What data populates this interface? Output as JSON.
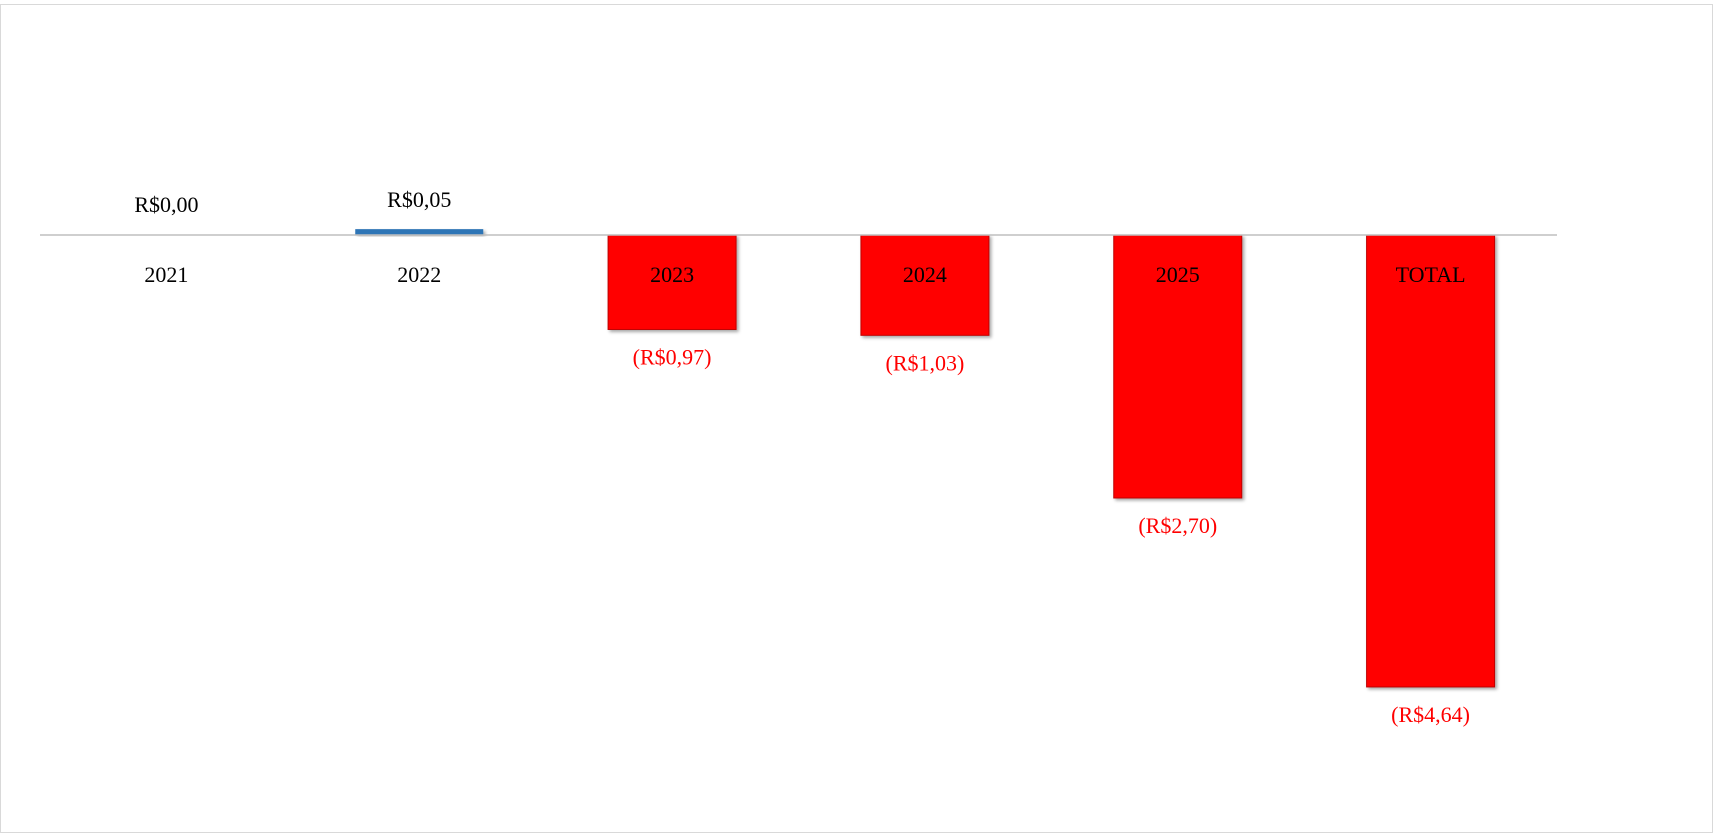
{
  "chart_data": {
    "type": "bar",
    "categories": [
      "2021",
      "2022",
      "2023",
      "2024",
      "2025",
      "TOTAL"
    ],
    "values": [
      0,
      0.05,
      -0.97,
      -1.03,
      -2.7,
      -4.64
    ],
    "value_labels": [
      "R$0,00",
      "R$0,05",
      "(R$0,97)",
      "(R$1,03)",
      "(R$2,70)",
      "(R$4,64)"
    ],
    "positive_color": "#2e75b6",
    "negative_color": "#ff0000"
  }
}
